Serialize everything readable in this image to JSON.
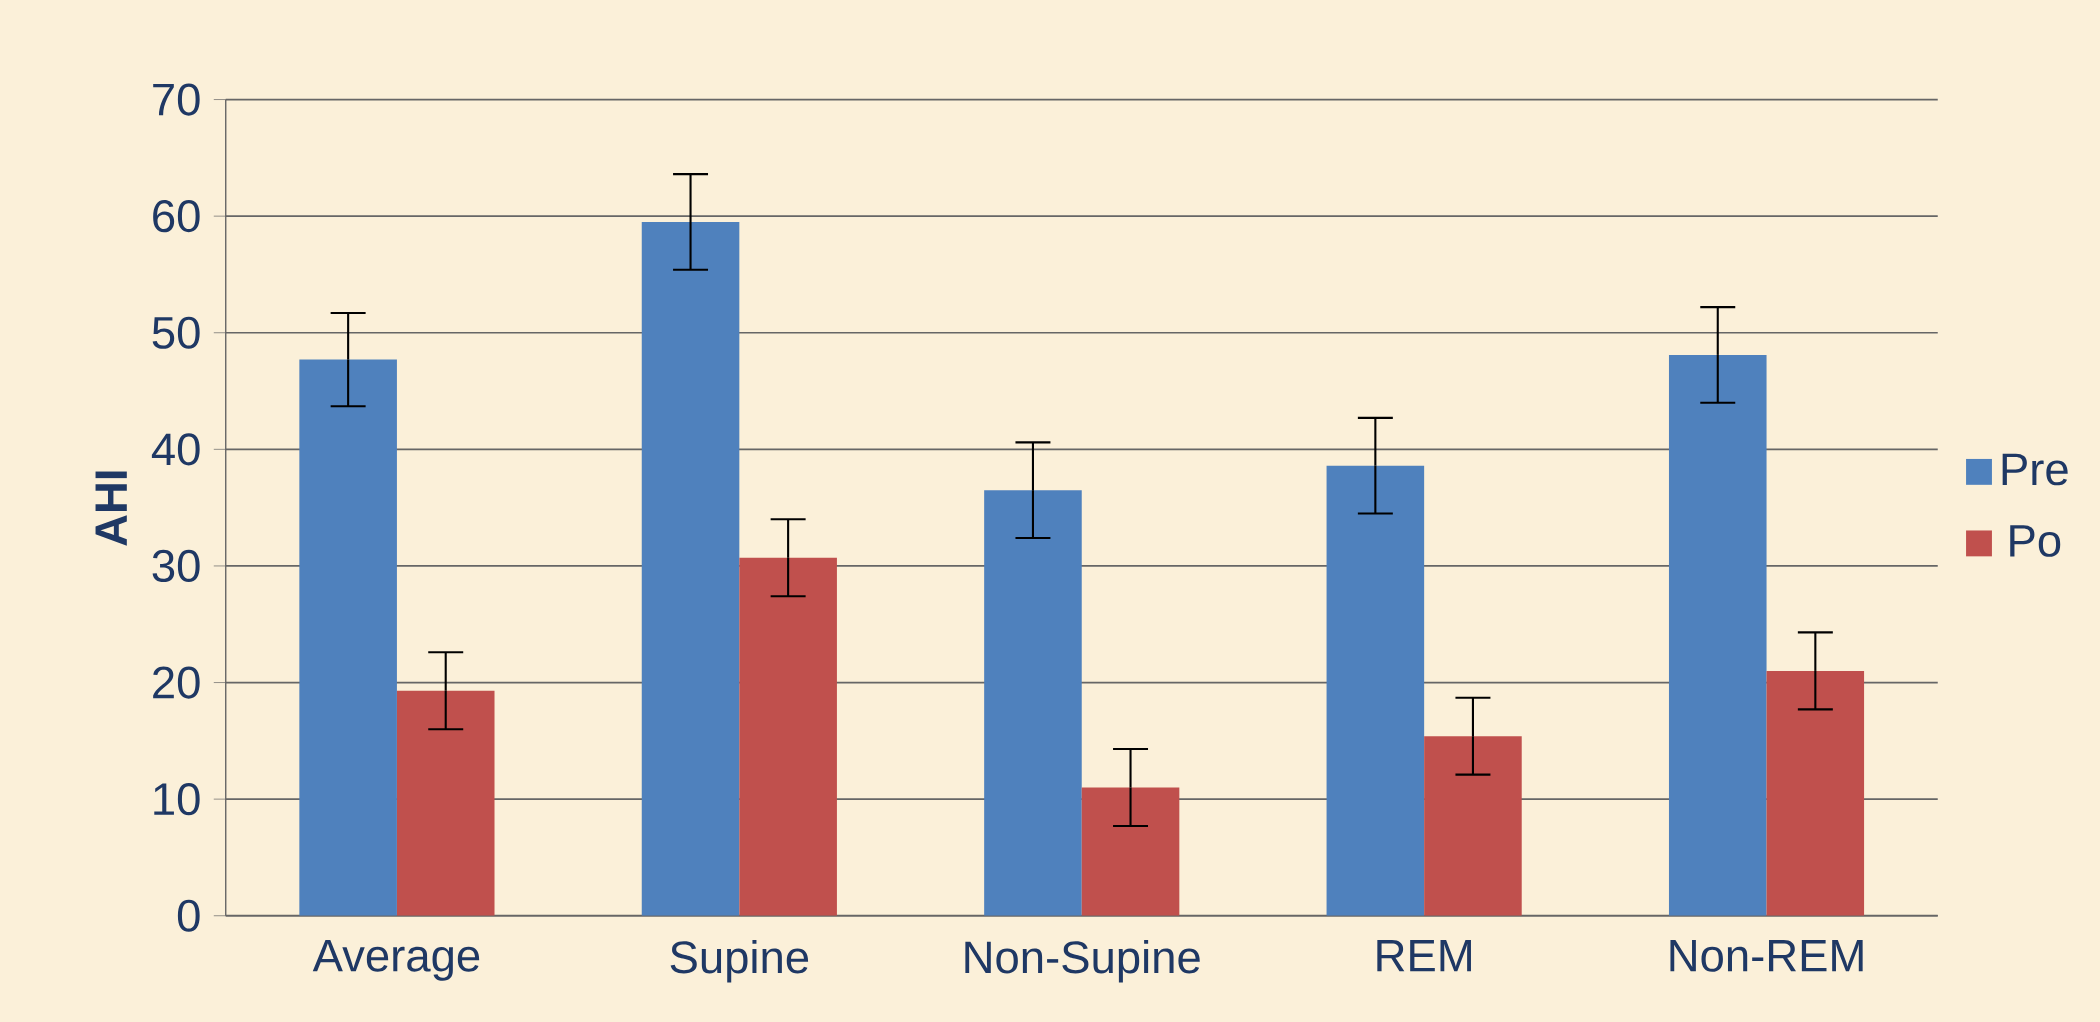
{
  "chart_data": {
    "type": "bar",
    "ylabel": "AHI",
    "categories": [
      "Average",
      "Supine",
      "Non-Supine",
      "REM",
      "Non-REM"
    ],
    "series": [
      {
        "name": "Pre",
        "color": "#4f81bd",
        "values": [
          47.7,
          59.5,
          36.5,
          38.6,
          48.1
        ],
        "errors": [
          4,
          4.1,
          4.1,
          4.1,
          4.1
        ]
      },
      {
        "name": "Po",
        "color": "#c0504d",
        "values": [
          19.3,
          30.7,
          11.0,
          15.4,
          21.0
        ],
        "errors": [
          3.3,
          3.3,
          3.3,
          3.3,
          3.3
        ]
      }
    ],
    "ylim": [
      0,
      70
    ],
    "yticks": [
      0,
      10,
      20,
      30,
      40,
      50,
      60,
      70
    ],
    "grid": "y",
    "legend": "right"
  }
}
